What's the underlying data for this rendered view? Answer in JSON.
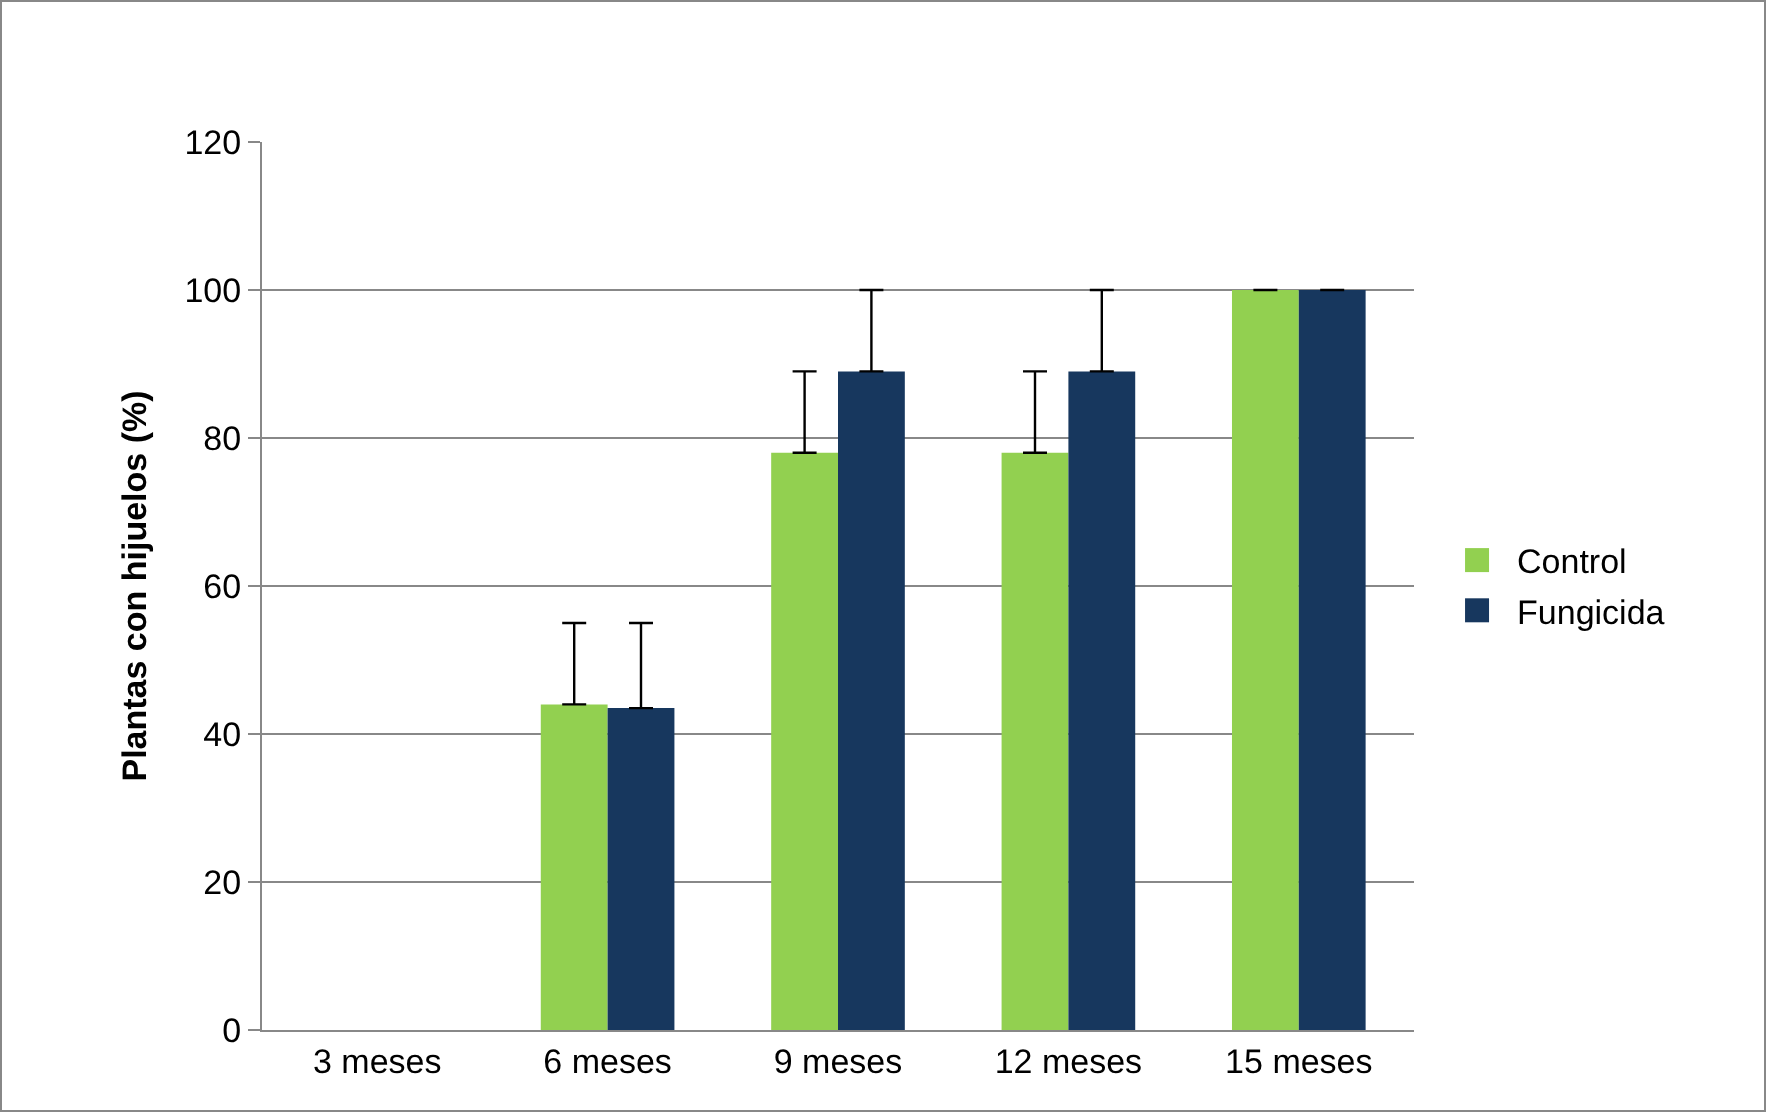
{
  "chart_data": {
    "type": "bar",
    "ylabel": "Plantas con hijuelos (%)",
    "categories": [
      "3 meses",
      "6 meses",
      "9 meses",
      "12 meses",
      "15 meses"
    ],
    "series": [
      {
        "name": "Control",
        "color": "#92d050",
        "values": [
          0,
          44,
          78,
          78,
          100
        ],
        "errors": [
          null,
          [
            44,
            55
          ],
          [
            78,
            89
          ],
          [
            78,
            89
          ],
          [
            100,
            100
          ]
        ]
      },
      {
        "name": "Fungicida",
        "color": "#17375e",
        "values": [
          0,
          43.5,
          89,
          89,
          100
        ],
        "errors": [
          null,
          [
            43.5,
            55
          ],
          [
            89,
            100
          ],
          [
            89,
            100
          ],
          [
            100,
            100
          ]
        ]
      }
    ],
    "ylim": [
      0,
      120
    ],
    "yticks": [
      0,
      20,
      40,
      60,
      80,
      100,
      120
    ],
    "grid": "y",
    "legend": "right"
  }
}
